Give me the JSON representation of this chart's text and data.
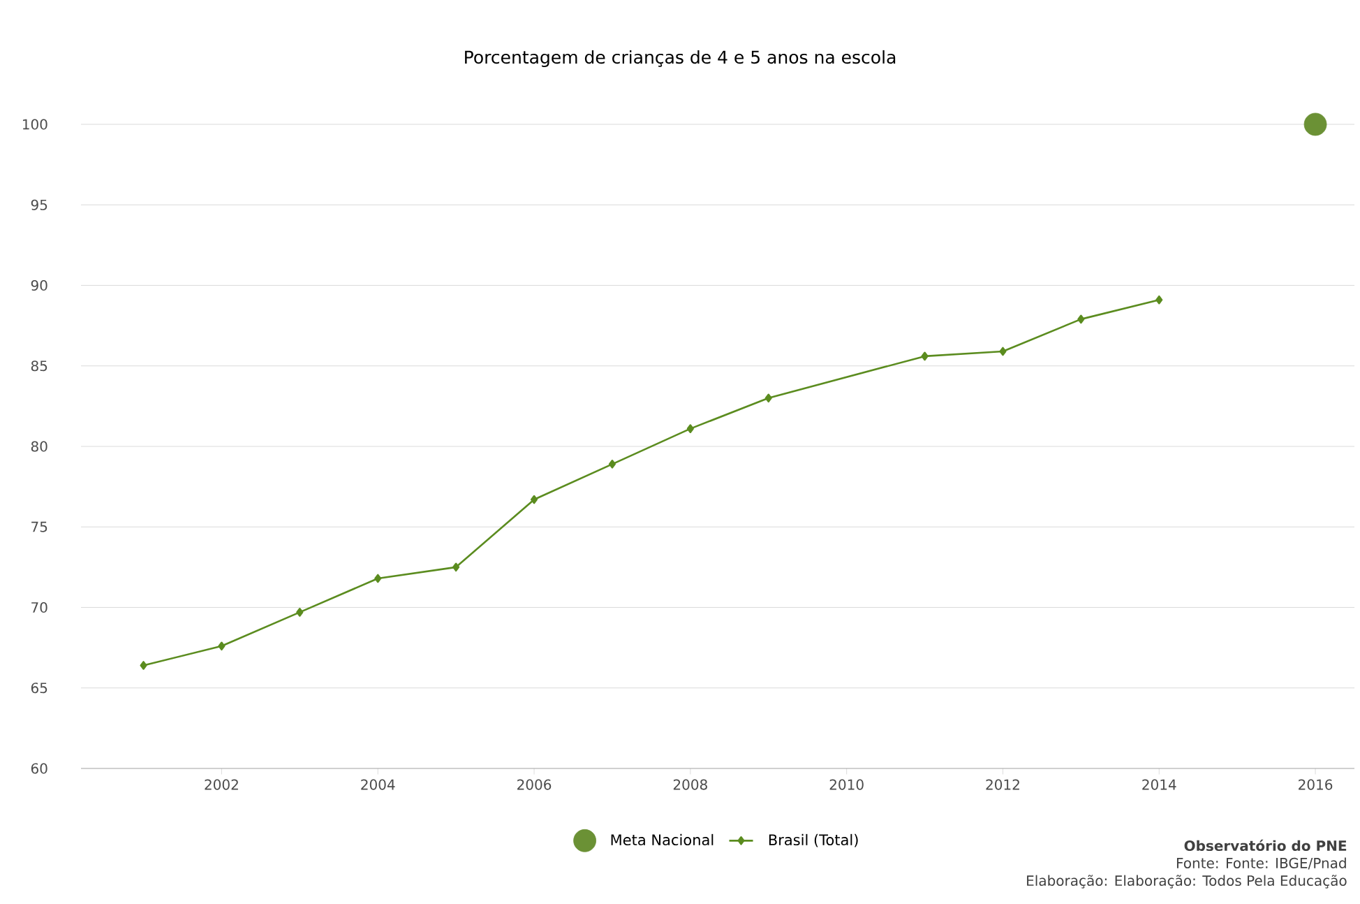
{
  "chart_data": {
    "type": "line",
    "title": "Porcentagem de crianças de 4 e 5 anos na escola",
    "xlim": [
      2000.2,
      2016.5
    ],
    "xticks": [
      2002,
      2004,
      2006,
      2008,
      2010,
      2012,
      2014,
      2016
    ],
    "ylim": [
      60,
      100
    ],
    "yticks": [
      60,
      65,
      70,
      75,
      80,
      85,
      90,
      95,
      100
    ],
    "grid": "y",
    "legend": "bottom",
    "series": [
      {
        "name": "Meta Nacional",
        "type": "scatter",
        "color": "#6b9135",
        "marker": "circle",
        "x": [
          2016
        ],
        "values": [
          100
        ]
      },
      {
        "name": "Brasil (Total)",
        "color": "#5b8c1f",
        "marker": "diamond",
        "x": [
          2001,
          2002,
          2003,
          2004,
          2005,
          2006,
          2007,
          2008,
          2009,
          2011,
          2012,
          2013,
          2014
        ],
        "values": [
          66.4,
          67.6,
          69.7,
          71.8,
          72.5,
          76.7,
          78.9,
          81.1,
          83.0,
          85.6,
          85.9,
          87.9,
          89.1
        ]
      }
    ],
    "annotations": [
      "**Observatório do PNE**",
      "Fonte: Fonte: IBGE/Pnad",
      "Elaboração: Elaboração: Todos Pela Educação"
    ]
  }
}
